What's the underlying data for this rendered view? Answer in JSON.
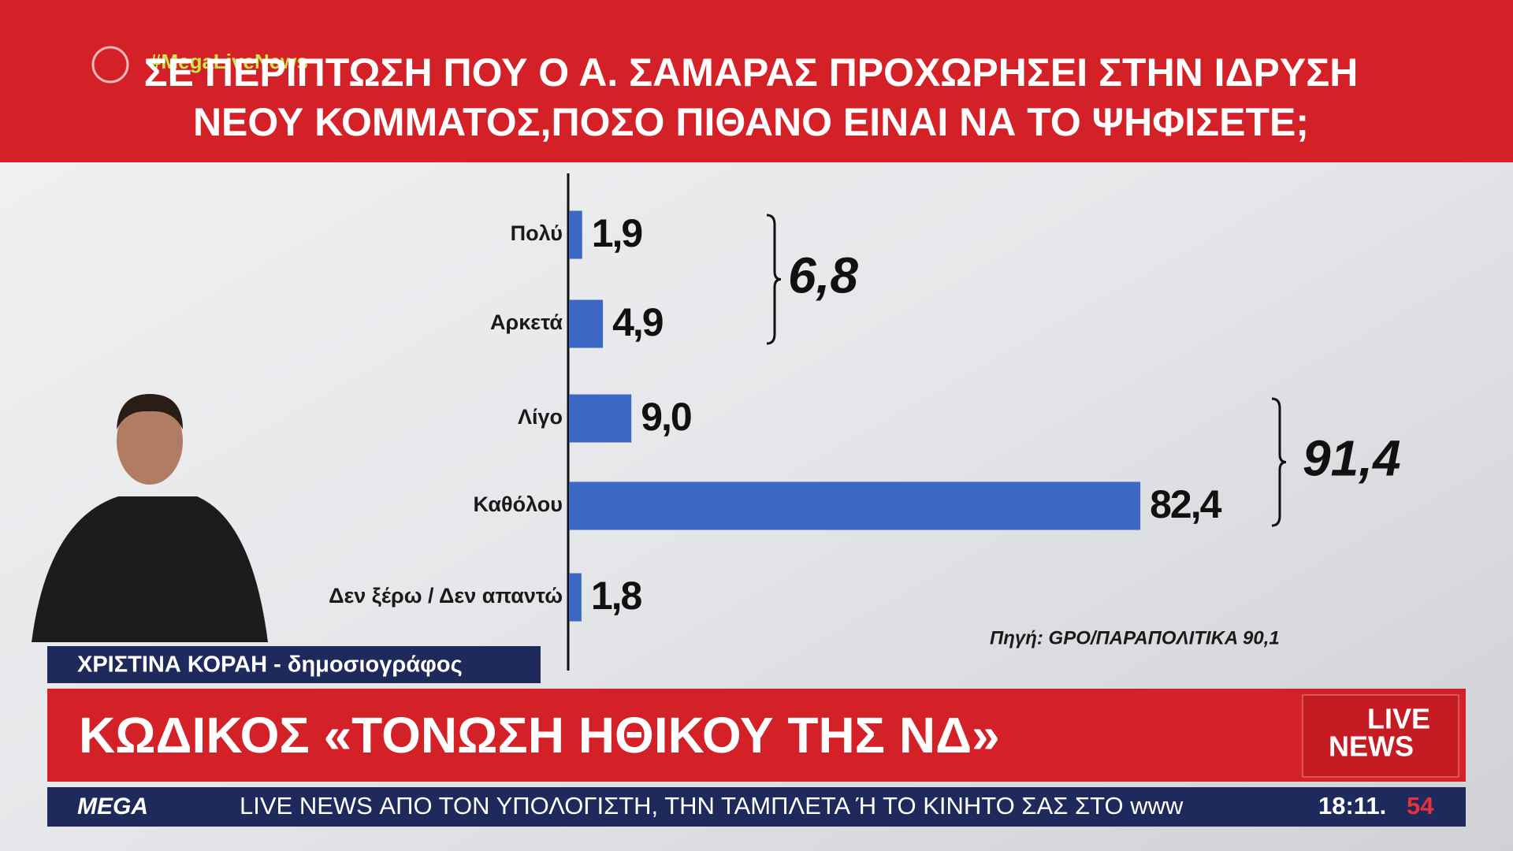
{
  "header": {
    "hashtag": "#MegaLiveNews",
    "title_lines": [
      "ΣΕ ΠΕΡΙΠΤΩΣΗ ΠΟΥ Ο Α. ΣΑΜΑΡΑΣ ΠΡΟΧΩΡΗΣΕΙ ΣΤΗΝ ΙΔΡΥΣΗ",
      "ΝΕΟΥ ΚΟΜΜΑΤΟΣ,ΠΟΣΟ ΠΙΘΑΝΟ ΕΙΝΑΙ ΝΑ ΤΟ ΨΗΦΙΣΕΤΕ;"
    ]
  },
  "chart_data": {
    "type": "bar",
    "orientation": "horizontal",
    "categories": [
      "Πολύ",
      "Αρκετά",
      "Λίγο",
      "Καθόλου",
      "Δεν ξέρω / Δεν απαντώ"
    ],
    "values": [
      1.9,
      4.9,
      9.0,
      82.4,
      1.8
    ],
    "value_labels": [
      "1,9",
      "4,9",
      "9,0",
      "82,4",
      "1,8"
    ],
    "color": "#3a68c2",
    "brackets": [
      {
        "value": 6.8,
        "label": "6,8"
      },
      {
        "value": 91.4,
        "label": "91,4"
      }
    ],
    "source": "Πηγή: GPO/ΠΑΡΑΠΟΛΙΤΙΚΑ 90,1"
  },
  "lower_third": {
    "name": "ΧΡΙΣΤΙΝΑ ΚΟΡΑΗ - δημοσιογράφος",
    "headline": "ΚΩΔΙΚΟΣ «ΤΟΝΩΣΗ ΗΘΙΚΟΥ ΤΗΣ ΝΔ»",
    "logo_top": "LIVE",
    "logo_bottom": "NEWS"
  },
  "ticker": {
    "channel": "MEGA",
    "text": "LIVE NEWS ΑΠΟ ΤΟΝ ΥΠΟΛΟΓΙΣΤΗ, ΤΗΝ ΤΑΜΠΛΕΤΑ Ή ΤΟ ΚΙΝΗΤΟ ΣΑΣ ΣΤΟ www",
    "time": "18:11.",
    "seconds": "54"
  }
}
